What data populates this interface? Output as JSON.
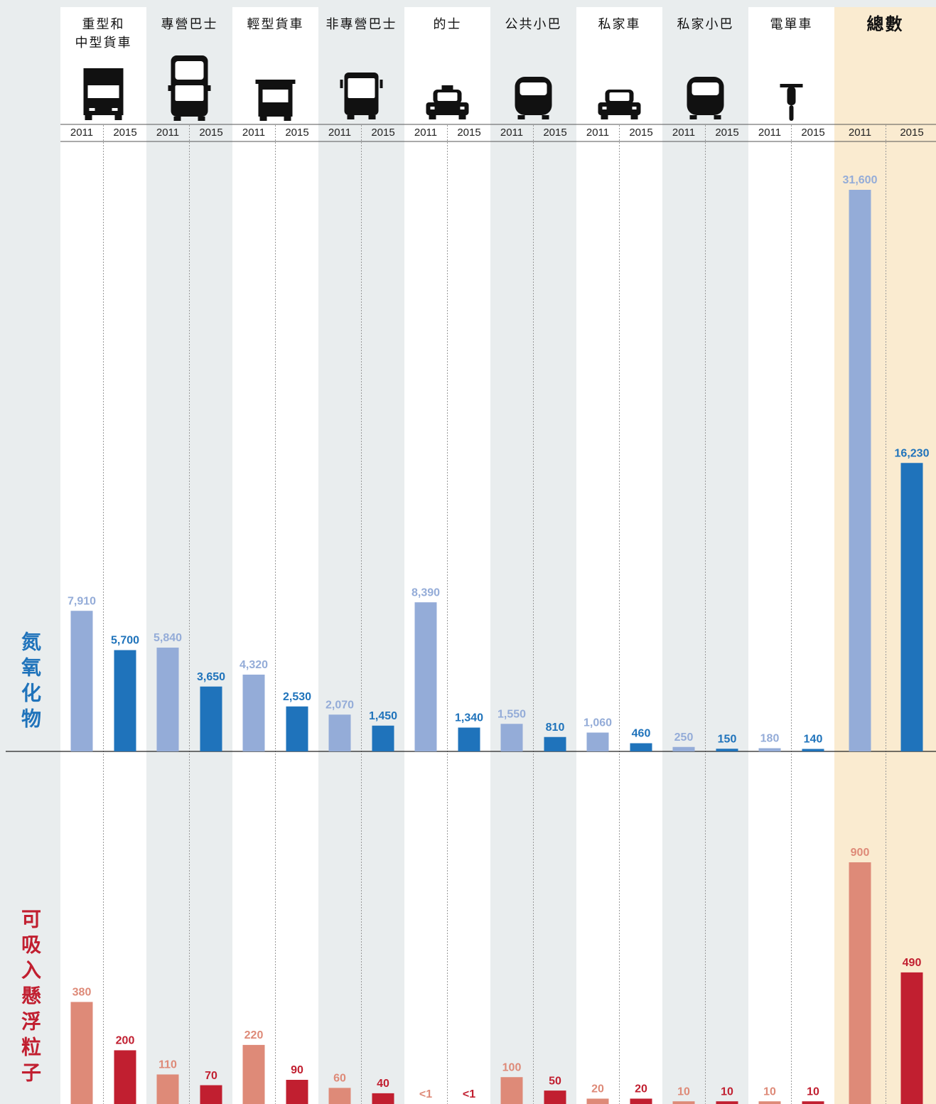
{
  "chart_data": [
    {
      "type": "bar",
      "label": "氮氧化物",
      "categories": [
        "重型和\n中型貨車",
        "專營巴士",
        "輕型貨車",
        "非專營巴士",
        "的士",
        "公共小巴",
        "私家車",
        "私家小巴",
        "電單車",
        "總數"
      ],
      "series": [
        {
          "name": "2011",
          "color": "#94acd8",
          "values": [
            7910,
            5840,
            4320,
            2070,
            8390,
            1550,
            1060,
            250,
            180,
            31600
          ],
          "value_labels": [
            "7,910",
            "5,840",
            "4,320",
            "2,070",
            "8,390",
            "1,550",
            "1,060",
            "250",
            "180",
            "31,600"
          ]
        },
        {
          "name": "2015",
          "color": "#1f73bb",
          "values": [
            5700,
            3650,
            2530,
            1450,
            1340,
            810,
            460,
            150,
            140,
            16230
          ],
          "value_labels": [
            "5,700",
            "3,650",
            "2,530",
            "1,450",
            "1,340",
            "810",
            "460",
            "150",
            "140",
            "16,230"
          ]
        }
      ]
    },
    {
      "type": "bar",
      "label": "可吸入懸浮粒子",
      "series": [
        {
          "name": "2011",
          "color": "#de8a78",
          "values": [
            380,
            110,
            220,
            60,
            0,
            100,
            20,
            10,
            10,
            900
          ],
          "value_labels": [
            "380",
            "110",
            "220",
            "60",
            "<1",
            "100",
            "20",
            "10",
            "10",
            "900"
          ]
        },
        {
          "name": "2015",
          "color": "#c11f30",
          "values": [
            200,
            70,
            90,
            40,
            0,
            50,
            20,
            10,
            10,
            490
          ],
          "value_labels": [
            "200",
            "70",
            "90",
            "40",
            "<1",
            "50",
            "20",
            "10",
            "10",
            "490"
          ]
        }
      ]
    }
  ]
}
